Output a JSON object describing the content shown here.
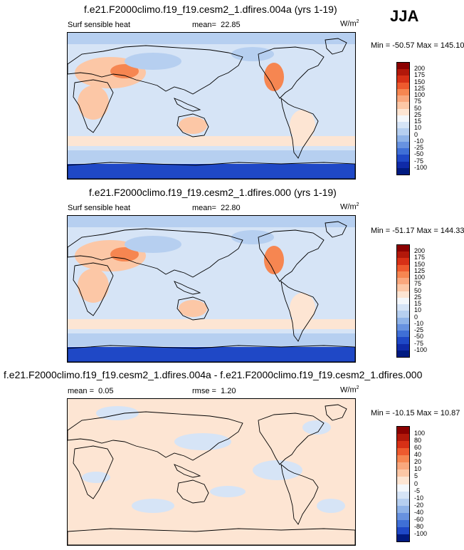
{
  "season": "JJA",
  "panels": [
    {
      "title": "f.e21.F2000climo.f19_f19.cesm2_1.dfires.004a (yrs 1-19)",
      "variable": "Surf sensible heat",
      "mean_label": "mean=",
      "mean_value": "22.85",
      "units": "W/m",
      "units_sup": "2",
      "minmax": "Min = -50.57 Max = 145.10",
      "colorbar_labels": [
        "200",
        "175",
        "150",
        "125",
        "100",
        "75",
        "50",
        "25",
        "15",
        "10",
        "0",
        "-10",
        "-25",
        "-50",
        "-75",
        "-100"
      ],
      "colorbar_colors": [
        "#8b0000",
        "#b2180a",
        "#d73016",
        "#ee5a2e",
        "#f68651",
        "#f9a77d",
        "#fcc7a6",
        "#fde5d3",
        "#f4f7fb",
        "#d6e4f6",
        "#b6cff0",
        "#8fb3e8",
        "#6792e0",
        "#3f6fd6",
        "#1f48c6",
        "#0f2aa8",
        "#001a80"
      ]
    },
    {
      "title": "f.e21.F2000climo.f19_f19.cesm2_1.dfires.000 (yrs 1-19)",
      "variable": "Surf sensible heat",
      "mean_label": "mean=",
      "mean_value": "22.80",
      "units": "W/m",
      "units_sup": "2",
      "minmax": "Min = -51.17 Max = 144.33",
      "colorbar_labels": [
        "200",
        "175",
        "150",
        "125",
        "100",
        "75",
        "50",
        "25",
        "15",
        "10",
        "0",
        "-10",
        "-25",
        "-50",
        "-75",
        "-100"
      ],
      "colorbar_colors": [
        "#8b0000",
        "#b2180a",
        "#d73016",
        "#ee5a2e",
        "#f68651",
        "#f9a77d",
        "#fcc7a6",
        "#fde5d3",
        "#f4f7fb",
        "#d6e4f6",
        "#b6cff0",
        "#8fb3e8",
        "#6792e0",
        "#3f6fd6",
        "#1f48c6",
        "#0f2aa8",
        "#001a80"
      ]
    },
    {
      "title": "f.e21.F2000climo.f19_f19.cesm2_1.dfires.004a - f.e21.F2000climo.f19_f19.cesm2_1.dfires.000",
      "mean_label": "mean =",
      "mean_value": "0.05",
      "rmse_label": "rmse =",
      "rmse_value": "1.20",
      "units": "W/m",
      "units_sup": "2",
      "minmax": "Min = -10.15 Max = 10.87",
      "colorbar_labels": [
        "100",
        "80",
        "60",
        "40",
        "20",
        "10",
        "5",
        "0",
        "-5",
        "-10",
        "-20",
        "-40",
        "-60",
        "-80",
        "-100"
      ],
      "colorbar_colors": [
        "#8b0000",
        "#b2180a",
        "#d73016",
        "#ee5a2e",
        "#f68651",
        "#f9a77d",
        "#fcc7a6",
        "#fde5d3",
        "#f4f7fb",
        "#d6e4f6",
        "#b6cff0",
        "#8fb3e8",
        "#6792e0",
        "#3f6fd6",
        "#1f48c6",
        "#001a80"
      ]
    }
  ],
  "colors": {
    "ocean_base": "#d6e4f6",
    "warm_light": "#fde5d3",
    "warm_mid": "#fcc7a6",
    "warm_strong": "#f68651",
    "cool_mid": "#b6cff0",
    "cool_strong": "#6792e0",
    "antarctic": "#1f48c6",
    "coast": "#000000"
  }
}
